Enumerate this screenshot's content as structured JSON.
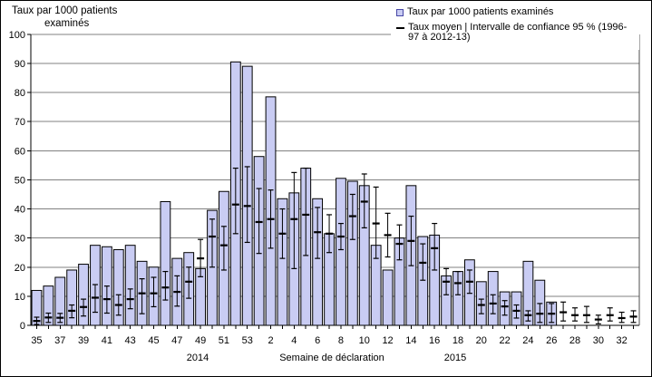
{
  "header": {
    "title_line1": "Taux par 1000 patients",
    "title_line2": "examinés"
  },
  "legend": {
    "series1_label": "Taux par 1000 patients examinés",
    "series2_line1": "Taux moyen | Intervalle de confiance 95 % (1996-",
    "series2_line2": "97 à 2012-13)"
  },
  "chart_data": {
    "type": "bar",
    "title": "Taux par 1000 patients examinés",
    "xlabel": "Semaine de déclaration",
    "ylabel": "Taux par 1000 patients examinés",
    "ylim": [
      0,
      100
    ],
    "ytick_step": 10,
    "grid": true,
    "legend_position": "top-right",
    "x_label_every": 2,
    "x_groups": [
      {
        "label": "2014"
      },
      {
        "label": "2015"
      }
    ],
    "categories": [
      "35",
      "36",
      "37",
      "38",
      "39",
      "40",
      "41",
      "42",
      "43",
      "44",
      "45",
      "46",
      "47",
      "48",
      "49",
      "50",
      "51",
      "52",
      "53",
      "1",
      "2",
      "3",
      "4",
      "5",
      "6",
      "7",
      "8",
      "9",
      "10",
      "11",
      "12",
      "13",
      "14",
      "15",
      "16",
      "17",
      "18",
      "19",
      "20",
      "21",
      "22",
      "23",
      "24",
      "25",
      "26",
      "27",
      "28",
      "29",
      "30",
      "31",
      "32",
      "33"
    ],
    "series": [
      {
        "name": "Taux par 1000 patients examinés",
        "type": "bar",
        "values": [
          12,
          13.5,
          16.5,
          19,
          21,
          27.5,
          27,
          26,
          27.5,
          22,
          20,
          42.5,
          23,
          25,
          19.5,
          39.5,
          46,
          90.5,
          89,
          58,
          78.5,
          43.5,
          45.5,
          54,
          43.5,
          31.5,
          50.5,
          49.5,
          48,
          27.5,
          19,
          30,
          48,
          30.5,
          31,
          17,
          18.5,
          22.5,
          15,
          18.5,
          11.5,
          11.5,
          22,
          15.5,
          8,
          null,
          null,
          null,
          null,
          null,
          null,
          null
        ]
      },
      {
        "name": "Taux moyen | Intervalle de confiance 95 % (1996-97 à 2012-13)",
        "type": "errorbar",
        "mean": [
          1.5,
          2.7,
          2.6,
          5,
          6.3,
          9.5,
          9,
          7,
          9,
          11,
          11,
          13,
          11.5,
          15,
          23,
          30.5,
          27.5,
          41.5,
          41,
          35.5,
          36.5,
          31.5,
          36.5,
          38,
          32,
          31.5,
          30.5,
          37.5,
          42.5,
          35,
          31,
          28,
          29,
          21.5,
          26.5,
          15,
          14.5,
          15,
          7,
          7.5,
          6.5,
          5,
          3.5,
          4,
          4,
          4.5,
          3.5,
          3.5,
          2,
          3.5,
          2.5,
          3
        ],
        "ci_low": [
          0.3,
          1,
          1,
          2.6,
          3.2,
          4.5,
          4.2,
          3.5,
          5.7,
          4,
          6.4,
          8.7,
          6.6,
          9.3,
          16.7,
          20,
          19,
          31.5,
          28.5,
          24.7,
          26.5,
          23,
          19.5,
          24,
          23,
          25,
          26,
          29.5,
          33.5,
          23,
          23.5,
          22.5,
          20.5,
          15.5,
          19,
          10.5,
          10.5,
          11,
          4,
          4,
          3.5,
          2.5,
          1.5,
          1,
          1,
          1.5,
          1.5,
          1,
          0.5,
          1.5,
          1,
          1
        ],
        "ci_high": [
          2.8,
          4.2,
          4.1,
          7,
          9,
          14,
          13.5,
          10.5,
          12.5,
          16,
          16.5,
          18.5,
          17,
          20,
          29.5,
          36.5,
          34,
          54,
          54.5,
          47,
          46.5,
          40,
          52.5,
          54,
          40.5,
          38,
          35,
          45,
          52,
          47.5,
          38.5,
          34.5,
          37.5,
          28,
          35,
          19.5,
          18.5,
          19,
          9,
          10.5,
          8.5,
          7,
          5,
          7.5,
          7.5,
          8,
          6,
          6.5,
          3.5,
          6,
          4.5,
          5
        ]
      }
    ],
    "y_tick_labels": [
      "0",
      "10",
      "20",
      "30",
      "40",
      "50",
      "60",
      "70",
      "80",
      "90",
      "100"
    ]
  },
  "colors": {
    "bar_fill": "#C9CCF3",
    "bar_stroke": "#000000",
    "grid": "#808080",
    "axis": "#000000",
    "error_bar": "#000000",
    "legend_square_outline": "#4646A5"
  }
}
